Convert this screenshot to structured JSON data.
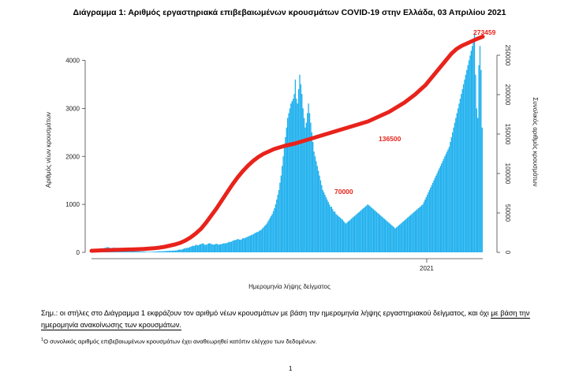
{
  "chart_data": {
    "type": "bar+line",
    "title": "Διάγραμμα 1: Αριθμός εργαστηριακά επιβεβαιωμένων κρουσμάτων COVID-19 στην Ελλάδα, 03 Απριλίου 2021",
    "xlabel": "Ημερομηνία λήψης δείγματος",
    "ylabel_left": "Αριθμός νέων κρουσμάτων",
    "ylabel_right": "Συνολικός αριθμός κρουσμάτων",
    "ylim_left": [
      0,
      4600
    ],
    "yticks_left": [
      "0",
      "1000",
      "2000",
      "3000",
      "4000"
    ],
    "ylim_right": [
      0,
      280000
    ],
    "yticks_right": [
      "0",
      "50000",
      "100000",
      "150000",
      "200000",
      "250000"
    ],
    "x_tick_labels": [
      "2021"
    ],
    "x_tick_index": 305,
    "series": [
      {
        "name": "Νέα κρούσματα",
        "kind": "bar",
        "color": "#1fb0ee",
        "values": [
          2,
          3,
          5,
          8,
          12,
          18,
          25,
          35,
          45,
          60,
          75,
          90,
          95,
          100,
          110,
          105,
          95,
          90,
          85,
          95,
          100,
          90,
          85,
          80,
          75,
          85,
          80,
          70,
          65,
          60,
          55,
          50,
          45,
          40,
          38,
          36,
          34,
          30,
          28,
          25,
          22,
          20,
          22,
          18,
          20,
          15,
          18,
          16,
          14,
          12,
          12,
          10,
          11,
          10,
          12,
          11,
          14,
          15,
          16,
          18,
          20,
          22,
          20,
          25,
          24,
          22,
          26,
          28,
          30,
          28,
          32,
          35,
          30,
          33,
          38,
          36,
          40,
          42,
          45,
          55,
          60,
          50,
          65,
          70,
          80,
          90,
          85,
          100,
          95,
          110,
          120,
          130,
          140,
          130,
          150,
          160,
          145,
          150,
          165,
          170,
          180,
          190,
          170,
          155,
          160,
          170,
          185,
          190,
          180,
          170,
          165,
          160,
          170,
          180,
          175,
          160,
          165,
          170,
          175,
          180,
          190,
          185,
          190,
          200,
          210,
          220,
          215,
          225,
          240,
          250,
          255,
          260,
          270,
          280,
          265,
          260,
          270,
          290,
          300,
          290,
          310,
          320,
          330,
          340,
          350,
          360,
          370,
          380,
          400,
          410,
          420,
          430,
          440,
          460,
          470,
          500,
          520,
          550,
          570,
          600,
          640,
          680,
          720,
          760,
          800,
          860,
          920,
          1000,
          1100,
          1200,
          1300,
          1450,
          1600,
          1800,
          2000,
          2200,
          2400,
          2600,
          2800,
          2900,
          3000,
          3100,
          3150,
          3200,
          3300,
          3600,
          3200,
          3100,
          3400,
          3700,
          3500,
          3300,
          3000,
          2800,
          2600,
          2700,
          2900,
          3100,
          2900,
          2700,
          2500,
          2300,
          2100,
          2000,
          1900,
          1800,
          1700,
          1600,
          1500,
          1400,
          1300,
          1250,
          1200,
          1150,
          1100,
          1050,
          1000,
          950,
          950,
          900,
          850,
          850,
          800,
          780,
          760,
          740,
          720,
          700,
          680,
          650,
          620,
          600,
          620,
          640,
          660,
          680,
          700,
          720,
          740,
          760,
          780,
          800,
          820,
          840,
          860,
          880,
          900,
          920,
          940,
          960,
          980,
          1000,
          980,
          960,
          940,
          920,
          900,
          880,
          860,
          840,
          820,
          800,
          780,
          760,
          740,
          720,
          700,
          680,
          660,
          640,
          620,
          600,
          580,
          560,
          540,
          520,
          500,
          520,
          540,
          560,
          580,
          600,
          620,
          640,
          660,
          680,
          700,
          720,
          740,
          760,
          780,
          800,
          820,
          840,
          860,
          880,
          900,
          920,
          940,
          960,
          980,
          1000,
          1050,
          1100,
          1150,
          1200,
          1250,
          1300,
          1350,
          1400,
          1450,
          1500,
          1550,
          1600,
          1650,
          1700,
          1750,
          1800,
          1850,
          1900,
          1950,
          2000,
          2050,
          2100,
          2150,
          2200,
          2300,
          2400,
          2500,
          2600,
          2700,
          2800,
          2900,
          3000,
          3100,
          3200,
          3300,
          3400,
          3500,
          3600,
          3700,
          3800,
          3900,
          4000,
          4100,
          4200,
          4300,
          4400,
          4550,
          3700,
          3000,
          2800,
          3900,
          4300,
          3800,
          2600
        ]
      },
      {
        "name": "Συνολικός αριθμός κρουσμάτων",
        "kind": "line",
        "color": "#e8231b",
        "axis": "right",
        "values": [
          2000,
          2300,
          2600,
          2800,
          3000,
          3200,
          3400,
          3600,
          3800,
          4000,
          4300,
          4700,
          5200,
          6000,
          7000,
          8500,
          10000,
          12000,
          15000,
          19000,
          24000,
          30000,
          38000,
          47000,
          56000,
          66000,
          76000,
          86000,
          95000,
          103000,
          110000,
          116000,
          121000,
          125000,
          128000,
          131000,
          133000,
          135000,
          136500,
          138000,
          140000,
          142000,
          144000,
          146000,
          148000,
          150000,
          152000,
          154000,
          156000,
          158000,
          160000,
          162000,
          164000,
          166000,
          169000,
          172000,
          175000,
          178000,
          182000,
          186000,
          190000,
          195000,
          200000,
          206000,
          212000,
          220000,
          228000,
          236000,
          244000,
          252000,
          258000,
          262000,
          265000,
          268000,
          271000,
          273459
        ]
      }
    ],
    "annotations": [
      {
        "text": "273459",
        "color": "#e8231b"
      },
      {
        "text": "136500",
        "color": "#e8231b"
      },
      {
        "text": "70000",
        "color": "#e8231b"
      }
    ]
  },
  "note": {
    "text_before": "Σημ.: οι στήλες στο Διάγραμμα 1 εκφράζουν τον αριθμό νέων κρουσμάτων με βάση την ημερομηνία λήψης εργαστηριακού δείγματος, και όχι ",
    "text_underlined": "με βάση την ημερομηνία ανακοίνωσης των κρουσμάτων."
  },
  "footnote": {
    "marker": "1",
    "text": "Ο συνολικός αριθμός επιβεβαιωμένων κρουσμάτων έχει αναθεωρηθεί κατόπιν ελέγχου των δεδομένων."
  },
  "page_number": "1"
}
